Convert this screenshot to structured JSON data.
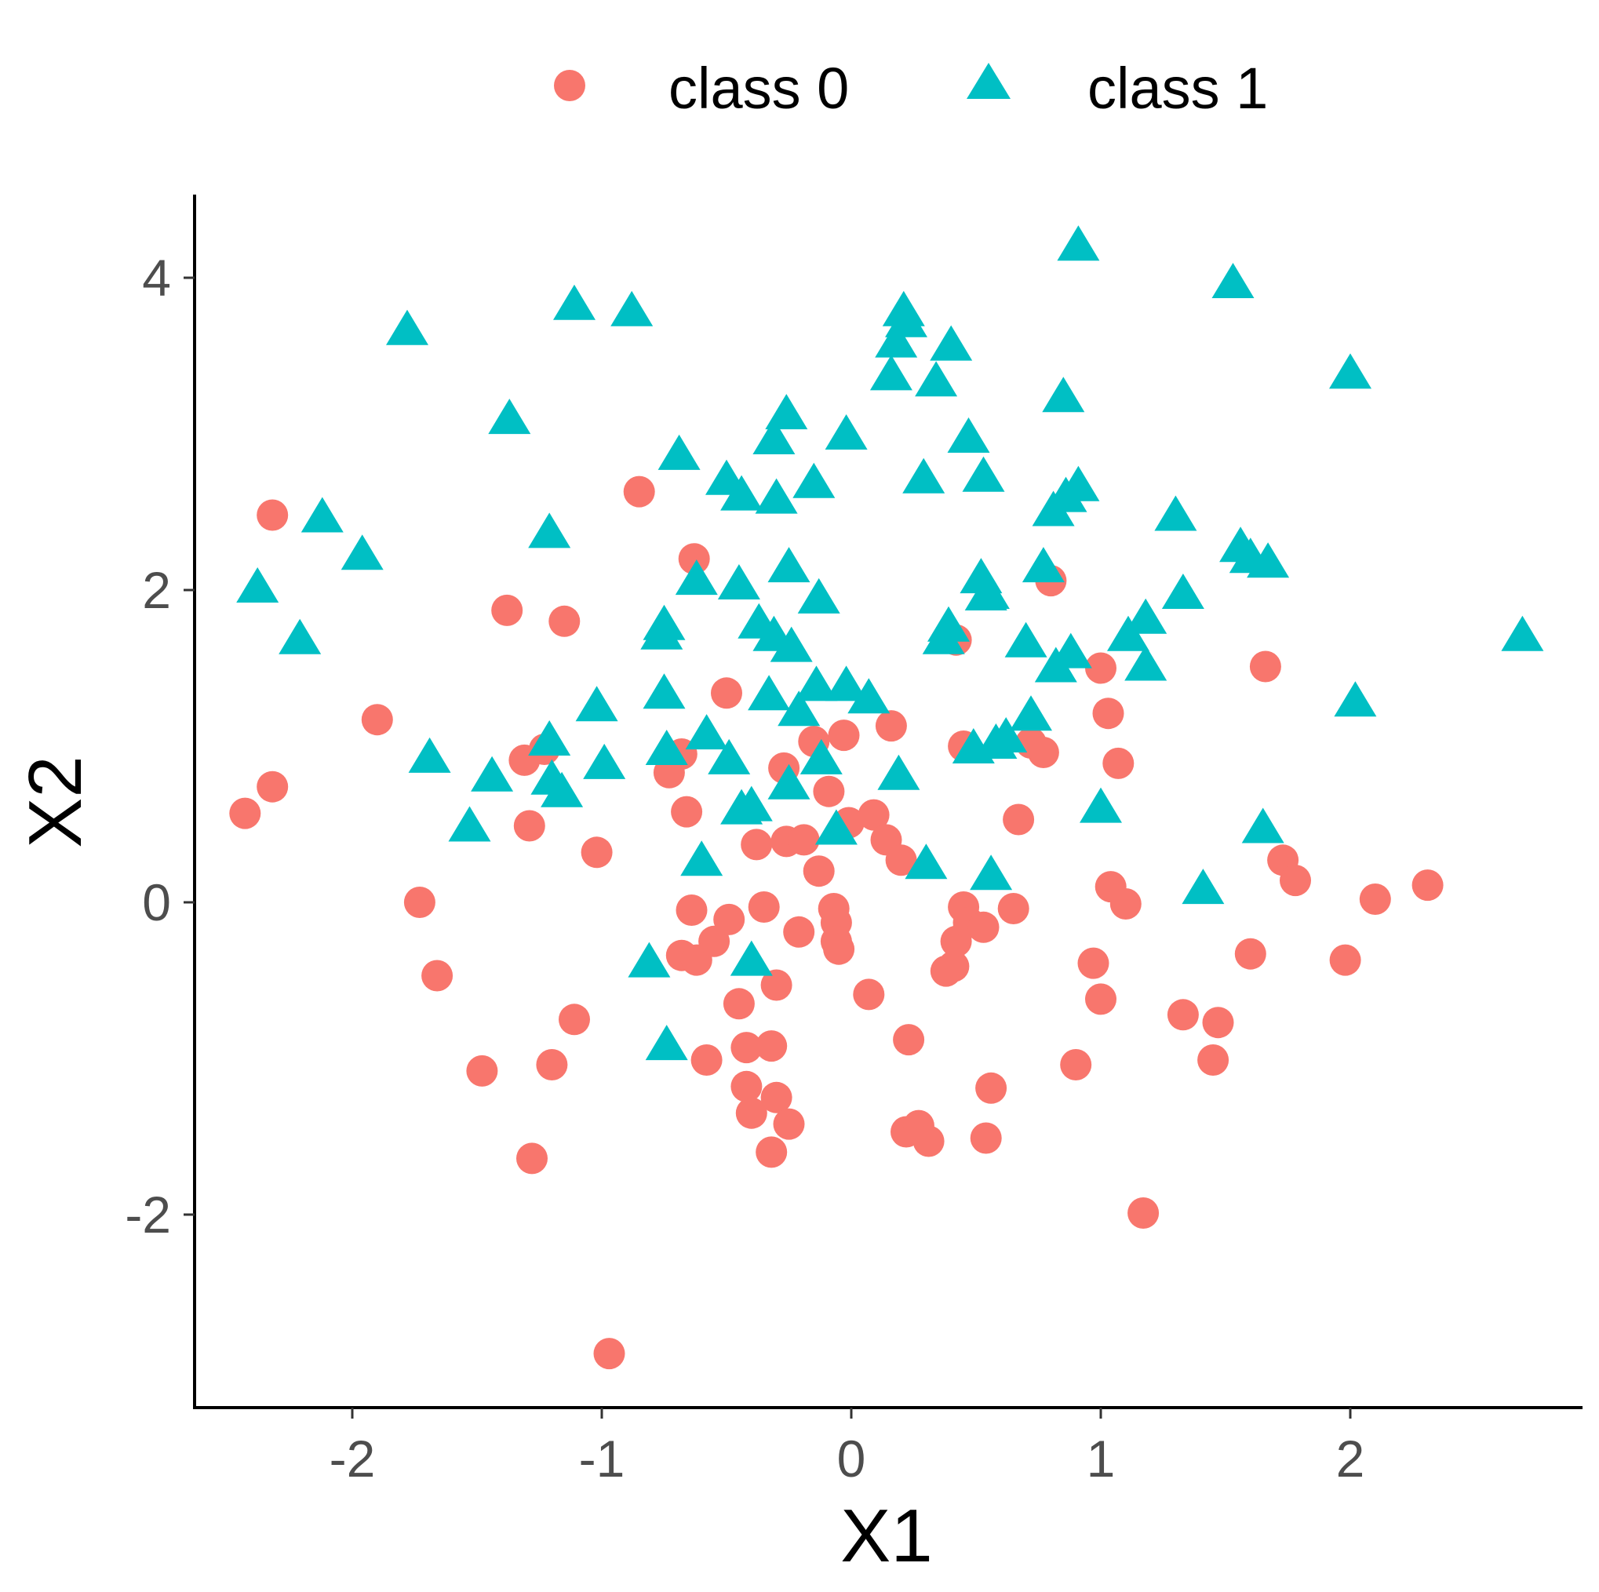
{
  "chart_data": {
    "type": "scatter",
    "title": "",
    "xlabel": "X1",
    "ylabel": "X2",
    "xlim": [
      -2.65,
      2.9
    ],
    "ylim": [
      -3.25,
      4.55
    ],
    "x_ticks": [
      -2,
      -1,
      0,
      1,
      2
    ],
    "y_ticks": [
      -2,
      0,
      2,
      4
    ],
    "x_tick_labels": [
      "-2",
      "-1",
      "0",
      "1",
      "2"
    ],
    "y_tick_labels": [
      "-2",
      "0",
      "2",
      "4"
    ],
    "grid": false,
    "legend": {
      "position": "top",
      "orientation": "horizontal"
    },
    "series": [
      {
        "name": "class 0",
        "marker": "circle",
        "color": "#F8766D",
        "points": [
          [
            -2.32,
            2.48
          ],
          [
            -2.43,
            0.57
          ],
          [
            -2.32,
            0.74
          ],
          [
            -1.9,
            1.17
          ],
          [
            -1.73,
            0.0
          ],
          [
            -1.66,
            -0.47
          ],
          [
            -1.48,
            -1.08
          ],
          [
            -1.38,
            1.87
          ],
          [
            -1.31,
            0.91
          ],
          [
            -1.29,
            0.49
          ],
          [
            -1.23,
            0.98
          ],
          [
            -1.2,
            -1.04
          ],
          [
            -1.15,
            1.8
          ],
          [
            -1.11,
            -0.75
          ],
          [
            -1.28,
            -1.64
          ],
          [
            -1.02,
            0.32
          ],
          [
            -0.97,
            -2.89
          ],
          [
            -0.85,
            2.63
          ],
          [
            -0.73,
            0.83
          ],
          [
            -0.68,
            0.95
          ],
          [
            -0.63,
            2.2
          ],
          [
            -0.66,
            0.58
          ],
          [
            -0.64,
            -0.05
          ],
          [
            -0.68,
            -0.34
          ],
          [
            -0.62,
            -0.37
          ],
          [
            -0.58,
            -1.01
          ],
          [
            -0.55,
            -0.25
          ],
          [
            -0.49,
            -0.11
          ],
          [
            -0.5,
            1.34
          ],
          [
            -0.45,
            -0.65
          ],
          [
            -0.42,
            -0.93
          ],
          [
            -0.42,
            -1.18
          ],
          [
            -0.4,
            -1.35
          ],
          [
            -0.38,
            0.37
          ],
          [
            -0.35,
            -0.03
          ],
          [
            -0.32,
            -0.92
          ],
          [
            -0.3,
            -0.53
          ],
          [
            -0.3,
            -1.25
          ],
          [
            -0.32,
            -1.6
          ],
          [
            -0.25,
            -1.42
          ],
          [
            -0.27,
            0.86
          ],
          [
            -0.26,
            0.39
          ],
          [
            -0.21,
            -0.19
          ],
          [
            -0.19,
            0.4
          ],
          [
            -0.15,
            1.03
          ],
          [
            -0.13,
            0.2
          ],
          [
            -0.09,
            0.71
          ],
          [
            -0.07,
            -0.04
          ],
          [
            -0.06,
            -0.13
          ],
          [
            -0.06,
            -0.25
          ],
          [
            -0.05,
            -0.3
          ],
          [
            -0.03,
            1.07
          ],
          [
            -0.01,
            0.51
          ],
          [
            0.07,
            -0.59
          ],
          [
            0.09,
            0.56
          ],
          [
            0.14,
            0.4
          ],
          [
            0.16,
            1.13
          ],
          [
            0.2,
            0.27
          ],
          [
            0.23,
            -0.88
          ],
          [
            0.22,
            -1.47
          ],
          [
            0.27,
            -1.43
          ],
          [
            0.31,
            -1.53
          ],
          [
            0.38,
            -0.44
          ],
          [
            0.41,
            -0.41
          ],
          [
            0.42,
            -0.25
          ],
          [
            0.45,
            -0.03
          ],
          [
            0.47,
            -0.13
          ],
          [
            0.42,
            1.68
          ],
          [
            0.45,
            1.0
          ],
          [
            0.53,
            -0.16
          ],
          [
            0.54,
            -1.51
          ],
          [
            0.56,
            -1.19
          ],
          [
            0.65,
            -0.04
          ],
          [
            0.67,
            0.53
          ],
          [
            0.72,
            1.02
          ],
          [
            0.77,
            0.96
          ],
          [
            0.8,
            2.06
          ],
          [
            0.9,
            -1.04
          ],
          [
            0.97,
            -0.39
          ],
          [
            1.0,
            1.5
          ],
          [
            1.0,
            -0.62
          ],
          [
            1.03,
            1.21
          ],
          [
            1.04,
            0.1
          ],
          [
            1.07,
            0.89
          ],
          [
            1.1,
            -0.01
          ],
          [
            1.17,
            -1.99
          ],
          [
            1.33,
            -0.72
          ],
          [
            1.45,
            -1.01
          ],
          [
            1.47,
            -0.77
          ],
          [
            1.6,
            -0.33
          ],
          [
            1.66,
            1.51
          ],
          [
            1.73,
            0.27
          ],
          [
            1.78,
            0.14
          ],
          [
            1.98,
            -0.37
          ],
          [
            2.1,
            0.02
          ],
          [
            2.31,
            0.11
          ]
        ]
      },
      {
        "name": "class 1",
        "marker": "triangle",
        "color": "#00BFC4",
        "points": [
          [
            -2.38,
            2.01
          ],
          [
            -2.21,
            1.68
          ],
          [
            -2.12,
            2.46
          ],
          [
            -1.96,
            2.22
          ],
          [
            -1.78,
            3.66
          ],
          [
            -1.69,
            0.92
          ],
          [
            -1.53,
            0.48
          ],
          [
            -1.44,
            0.8
          ],
          [
            -1.37,
            3.09
          ],
          [
            -1.21,
            2.36
          ],
          [
            -1.21,
            1.03
          ],
          [
            -1.2,
            0.78
          ],
          [
            -1.16,
            0.7
          ],
          [
            -1.11,
            3.82
          ],
          [
            -1.02,
            1.25
          ],
          [
            -0.99,
            0.88
          ],
          [
            -0.88,
            3.78
          ],
          [
            -0.81,
            -0.39
          ],
          [
            -0.76,
            1.71
          ],
          [
            -0.75,
            1.77
          ],
          [
            -0.75,
            1.33
          ],
          [
            -0.74,
            0.97
          ],
          [
            -0.74,
            -0.92
          ],
          [
            -0.69,
            2.86
          ],
          [
            -0.62,
            2.06
          ],
          [
            -0.6,
            0.26
          ],
          [
            -0.58,
            1.07
          ],
          [
            -0.5,
            2.7
          ],
          [
            -0.49,
            0.91
          ],
          [
            -0.45,
            2.03
          ],
          [
            -0.44,
            2.6
          ],
          [
            -0.44,
            0.59
          ],
          [
            -0.4,
            0.61
          ],
          [
            -0.4,
            -0.38
          ],
          [
            -0.37,
            1.78
          ],
          [
            -0.33,
            1.32
          ],
          [
            -0.31,
            1.7
          ],
          [
            -0.31,
            2.96
          ],
          [
            -0.3,
            2.58
          ],
          [
            -0.26,
            3.12
          ],
          [
            -0.25,
            2.14
          ],
          [
            -0.25,
            0.75
          ],
          [
            -0.24,
            1.63
          ],
          [
            -0.21,
            1.22
          ],
          [
            -0.15,
            2.68
          ],
          [
            -0.13,
            1.94
          ],
          [
            -0.14,
            1.38
          ],
          [
            -0.12,
            0.91
          ],
          [
            -0.06,
            0.46
          ],
          [
            -0.02,
            2.99
          ],
          [
            -0.02,
            1.38
          ],
          [
            0.07,
            1.3
          ],
          [
            0.16,
            3.37
          ],
          [
            0.18,
            3.58
          ],
          [
            0.21,
            3.78
          ],
          [
            0.22,
            3.71
          ],
          [
            0.19,
            0.81
          ],
          [
            0.29,
            2.71
          ],
          [
            0.3,
            0.24
          ],
          [
            0.34,
            3.33
          ],
          [
            0.37,
            1.68
          ],
          [
            0.39,
            1.76
          ],
          [
            0.4,
            3.56
          ],
          [
            0.47,
            2.97
          ],
          [
            0.49,
            0.98
          ],
          [
            0.52,
            2.07
          ],
          [
            0.53,
            2.72
          ],
          [
            0.54,
            1.96
          ],
          [
            0.55,
            1.97
          ],
          [
            0.56,
            0.17
          ],
          [
            0.58,
            1.01
          ],
          [
            0.62,
            1.05
          ],
          [
            0.7,
            1.66
          ],
          [
            0.72,
            1.19
          ],
          [
            0.77,
            2.14
          ],
          [
            0.81,
            2.5
          ],
          [
            0.82,
            1.5
          ],
          [
            0.85,
            3.23
          ],
          [
            0.86,
            2.59
          ],
          [
            0.88,
            1.59
          ],
          [
            0.91,
            2.66
          ],
          [
            0.91,
            4.2
          ],
          [
            1.0,
            0.6
          ],
          [
            1.11,
            1.7
          ],
          [
            1.18,
            1.81
          ],
          [
            1.18,
            1.51
          ],
          [
            1.3,
            2.47
          ],
          [
            1.33,
            1.97
          ],
          [
            1.41,
            0.08
          ],
          [
            1.53,
            3.96
          ],
          [
            1.56,
            2.27
          ],
          [
            1.6,
            2.2
          ],
          [
            1.67,
            2.17
          ],
          [
            1.65,
            0.47
          ],
          [
            2.0,
            3.38
          ],
          [
            2.02,
            1.28
          ],
          [
            2.69,
            1.7
          ]
        ]
      }
    ]
  }
}
